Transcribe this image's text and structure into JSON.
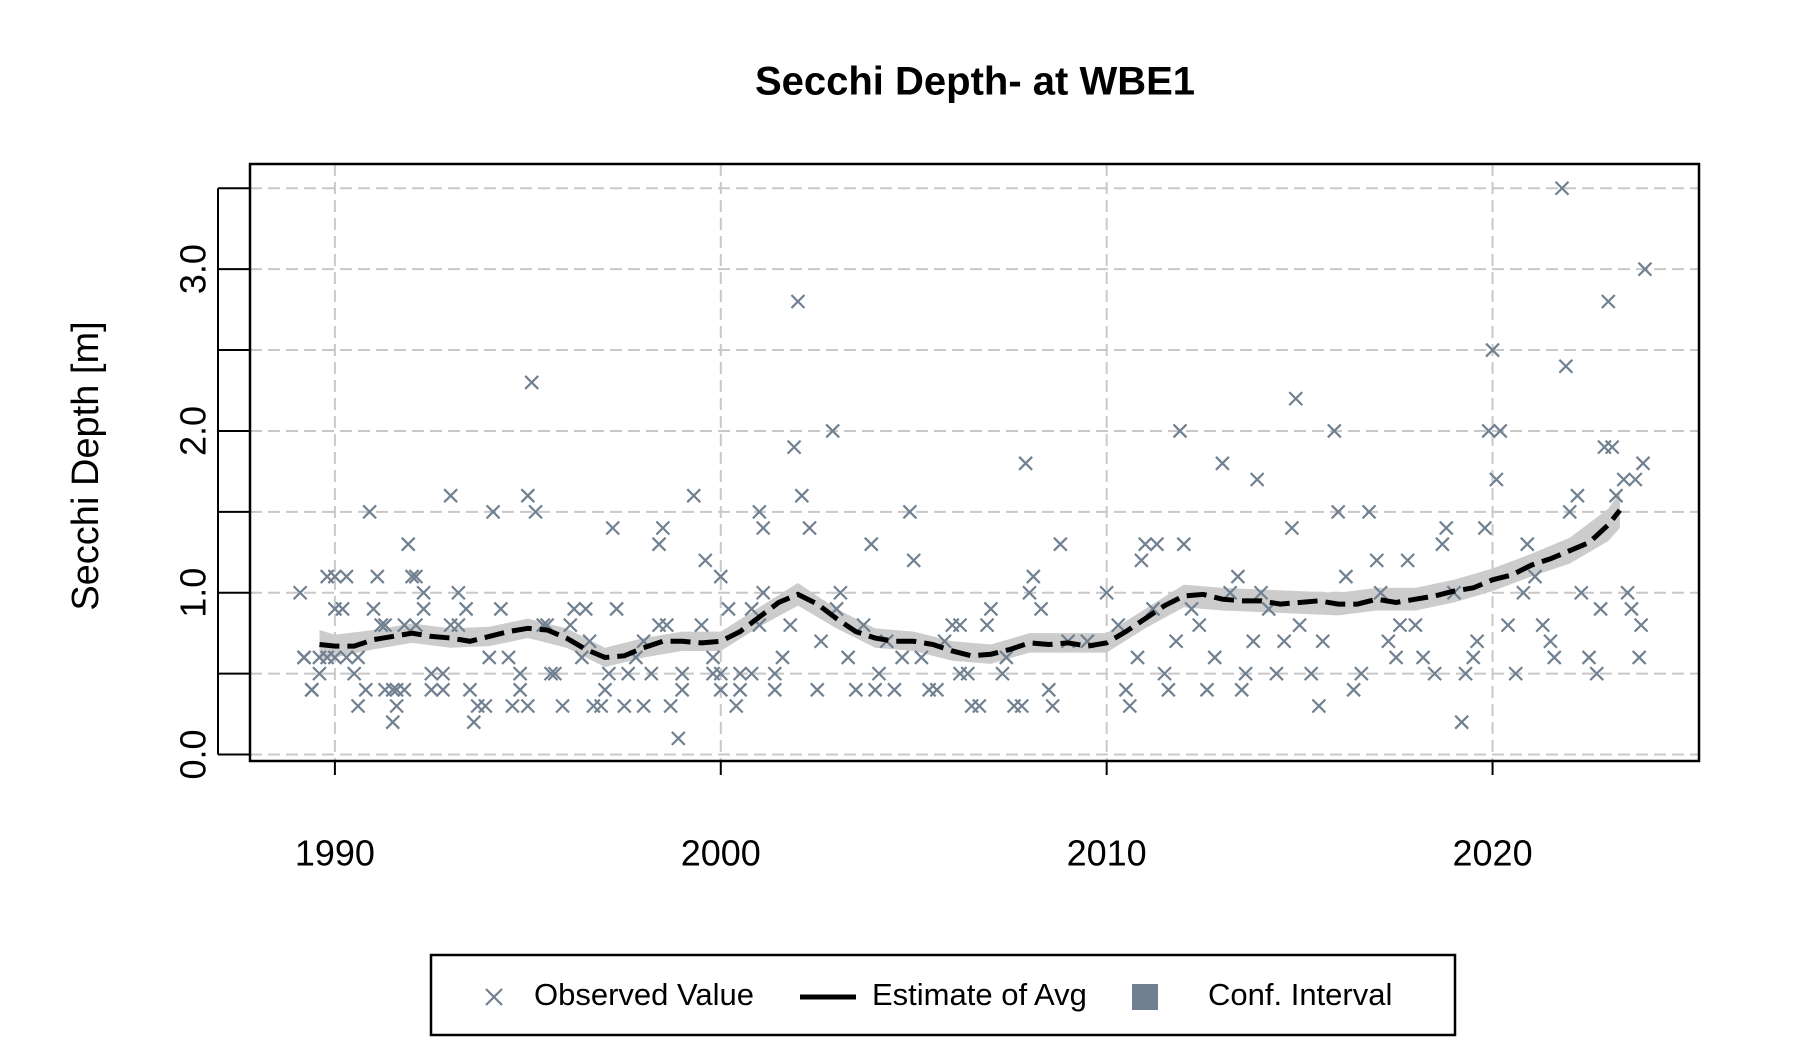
{
  "chart_data": {
    "type": "scatter",
    "title": "Secchi Depth- at WBE1",
    "y_label": "Secchi Depth [m]",
    "xlim": [
      1987.8,
      2025.35
    ],
    "xticks": [
      1990,
      2000,
      2010,
      2020
    ],
    "ylim": [
      -0.04,
      3.65
    ],
    "yticks": [
      {
        "value": 0,
        "label": "0.0"
      },
      {
        "value": 1,
        "label": "1.0"
      },
      {
        "value": 2,
        "label": "2.0"
      },
      {
        "value": 3,
        "label": "3.0"
      }
    ],
    "yminor_ticks": [
      0.5,
      1.5,
      2.5,
      3.5
    ],
    "grid": true,
    "legend": "bottom",
    "series": [
      {
        "name": "Observed Value",
        "type": "scatter",
        "color": "#708090",
        "x": [
          1989.1,
          1989.2,
          1989.2,
          1989.4,
          1989.4,
          1989.6,
          1989.6,
          1989.8,
          1989.8,
          1990.0,
          1990.0,
          1990.0,
          1990.2,
          1990.3,
          1990.3,
          1990.5,
          1990.6,
          1990.6,
          1990.8,
          1990.9,
          1991.0,
          1991.1,
          1991.2,
          1991.3,
          1991.3,
          1991.5,
          1991.5,
          1991.6,
          1991.6,
          1991.8,
          1991.8,
          1991.9,
          1992.0,
          1992.1,
          1992.1,
          1992.3,
          1992.3,
          1992.5,
          1992.5,
          1992.8,
          1992.8,
          1993.0,
          1993.0,
          1993.2,
          1993.2,
          1993.4,
          1993.5,
          1993.6,
          1993.7,
          1993.9,
          1994.0,
          1994.1,
          1994.3,
          1994.5,
          1994.6,
          1994.8,
          1994.8,
          1995.0,
          1995.0,
          1995.1,
          1995.2,
          1995.4,
          1995.5,
          1995.6,
          1995.7,
          1995.9,
          1996.1,
          1996.2,
          1996.4,
          1996.5,
          1996.6,
          1996.7,
          1996.9,
          1997.0,
          1997.1,
          1997.2,
          1997.3,
          1997.5,
          1997.6,
          1997.8,
          1998.0,
          1998.0,
          1998.2,
          1998.4,
          1998.4,
          1998.5,
          1998.6,
          1998.7,
          1998.9,
          1999.0,
          1999.0,
          1999.3,
          1999.5,
          1999.6,
          1999.8,
          1999.8,
          2000.0,
          2000.0,
          2000.0,
          2000.2,
          2000.4,
          2000.5,
          2000.5,
          2000.8,
          2000.8,
          2001.0,
          2001.0,
          2001.1,
          2001.1,
          2001.4,
          2001.4,
          2001.6,
          2001.8,
          2001.9,
          2002.0,
          2002.1,
          2002.3,
          2002.5,
          2002.6,
          2002.9,
          2003.0,
          2003.1,
          2003.3,
          2003.5,
          2003.7,
          2003.9,
          2004.0,
          2004.1,
          2004.3,
          2004.5,
          2004.7,
          2004.9,
          2005.0,
          2005.2,
          2005.4,
          2005.6,
          2005.8,
          2006.0,
          2006.2,
          2006.2,
          2006.4,
          2006.5,
          2006.7,
          2006.9,
          2007.0,
          2007.3,
          2007.4,
          2007.6,
          2007.8,
          2007.9,
          2008.0,
          2008.1,
          2008.3,
          2008.5,
          2008.6,
          2008.8,
          2009.0,
          2009.5,
          2010.0,
          2010.3,
          2010.5,
          2010.6,
          2010.8,
          2010.9,
          2011.0,
          2011.2,
          2011.3,
          2011.5,
          2011.6,
          2011.8,
          2011.9,
          2012.0,
          2012.2,
          2012.4,
          2012.6,
          2012.8,
          2013.0,
          2013.2,
          2013.4,
          2013.5,
          2013.6,
          2013.8,
          2013.9,
          2014.0,
          2014.2,
          2014.4,
          2014.6,
          2014.8,
          2014.9,
          2015.0,
          2015.3,
          2015.5,
          2015.6,
          2015.9,
          2016.0,
          2016.2,
          2016.4,
          2016.6,
          2016.8,
          2017.0,
          2017.1,
          2017.3,
          2017.5,
          2017.6,
          2017.8,
          2018.0,
          2018.2,
          2018.5,
          2018.7,
          2018.8,
          2019.0,
          2019.2,
          2019.3,
          2019.5,
          2019.6,
          2019.8,
          2019.9,
          2020.0,
          2020.1,
          2020.2,
          2020.4,
          2020.6,
          2020.8,
          2020.9,
          2021.1,
          2021.3,
          2021.5,
          2021.6,
          2021.8,
          2021.9,
          2022.0,
          2022.2,
          2022.3,
          2022.5,
          2022.7,
          2022.8,
          2022.9,
          2023.0,
          2023.1,
          2023.2,
          2023.4,
          2023.5,
          2023.6,
          2023.7,
          2023.8,
          2023.85,
          2023.9,
          2023.95
        ],
        "values": [
          1.0,
          0.6,
          0.6,
          0.4,
          0.4,
          0.6,
          0.5,
          1.1,
          0.6,
          0.9,
          1.1,
          0.6,
          0.9,
          1.1,
          0.6,
          0.5,
          0.3,
          0.6,
          0.4,
          1.5,
          0.9,
          1.1,
          0.8,
          0.4,
          0.8,
          0.2,
          0.4,
          0.3,
          0.4,
          0.4,
          0.8,
          1.3,
          1.1,
          0.8,
          1.1,
          1.0,
          0.9,
          0.4,
          0.5,
          0.4,
          0.5,
          1.6,
          0.8,
          1.0,
          0.8,
          0.9,
          0.4,
          0.2,
          0.3,
          0.3,
          0.6,
          1.5,
          0.9,
          0.6,
          0.3,
          0.4,
          0.5,
          0.3,
          1.6,
          2.3,
          1.5,
          0.8,
          0.8,
          0.5,
          0.5,
          0.3,
          0.8,
          0.9,
          0.6,
          0.9,
          0.7,
          0.3,
          0.3,
          0.4,
          0.5,
          1.4,
          0.9,
          0.3,
          0.5,
          0.6,
          0.7,
          0.3,
          0.5,
          1.3,
          0.8,
          1.4,
          0.8,
          0.3,
          0.1,
          0.5,
          0.4,
          1.6,
          0.8,
          1.2,
          0.5,
          0.6,
          0.4,
          0.5,
          1.1,
          0.9,
          0.3,
          0.4,
          0.5,
          0.5,
          0.9,
          1.5,
          0.8,
          1.4,
          1.0,
          0.5,
          0.4,
          0.6,
          0.8,
          1.9,
          2.8,
          1.6,
          1.4,
          0.4,
          0.7,
          2.0,
          0.9,
          1.0,
          0.6,
          0.4,
          0.8,
          1.3,
          0.4,
          0.5,
          0.7,
          0.4,
          0.6,
          1.5,
          1.2,
          0.6,
          0.4,
          0.4,
          0.7,
          0.8,
          0.8,
          0.5,
          0.5,
          0.3,
          0.3,
          0.8,
          0.9,
          0.5,
          0.6,
          0.3,
          0.3,
          1.8,
          1.0,
          1.1,
          0.9,
          0.4,
          0.3,
          1.3,
          0.7,
          0.7,
          1.0,
          0.8,
          0.4,
          0.3,
          0.6,
          1.2,
          1.3,
          0.9,
          1.3,
          0.5,
          0.4,
          0.7,
          2.0,
          1.3,
          0.9,
          0.8,
          0.4,
          0.6,
          1.8,
          1.0,
          1.1,
          0.4,
          0.5,
          0.7,
          1.7,
          1.0,
          0.9,
          0.5,
          0.7,
          1.4,
          2.2,
          0.8,
          0.5,
          0.3,
          0.7,
          2.0,
          1.5,
          1.1,
          0.4,
          0.5,
          1.5,
          1.2,
          1.0,
          0.7,
          0.6,
          0.8,
          1.2,
          0.8,
          0.6,
          0.5,
          1.3,
          1.4,
          1.0,
          0.2,
          0.5,
          0.6,
          0.7,
          1.4,
          2.0,
          2.5,
          1.7,
          2.0,
          0.8,
          0.5,
          1.0,
          1.3,
          1.1,
          0.8,
          0.7,
          0.6,
          3.5,
          2.4,
          1.5,
          1.6,
          1.0,
          0.6,
          0.5,
          0.9,
          1.9,
          2.8,
          1.9,
          1.6,
          1.7,
          1.0,
          0.9,
          1.7,
          0.6,
          0.8,
          1.8,
          3.0
        ]
      },
      {
        "name": "Estimate of Avg",
        "type": "line",
        "color": "#000000",
        "x": [
          1989.6,
          1990,
          1990.5,
          1991,
          1991.5,
          1992,
          1992.5,
          1993,
          1993.5,
          1994,
          1994.5,
          1995,
          1995.5,
          1996,
          1996.5,
          1997,
          1997.5,
          1998,
          1998.5,
          1999,
          1999.5,
          2000,
          2000.5,
          2001,
          2001.5,
          2002,
          2002.5,
          2003,
          2003.5,
          2004,
          2004.5,
          2005,
          2005.5,
          2006,
          2006.5,
          2007,
          2007.5,
          2008,
          2008.5,
          2009,
          2009.5,
          2010,
          2010.5,
          2011,
          2011.5,
          2012,
          2012.5,
          2013,
          2013.5,
          2014,
          2014.5,
          2015,
          2015.5,
          2016,
          2016.5,
          2017,
          2017.5,
          2018,
          2018.5,
          2019,
          2019.5,
          2020,
          2020.5,
          2021,
          2021.5,
          2022,
          2022.5,
          2023,
          2023.3
        ],
        "values": [
          0.68,
          0.67,
          0.67,
          0.71,
          0.73,
          0.75,
          0.73,
          0.72,
          0.7,
          0.73,
          0.76,
          0.78,
          0.77,
          0.72,
          0.65,
          0.6,
          0.61,
          0.66,
          0.7,
          0.7,
          0.69,
          0.7,
          0.76,
          0.85,
          0.94,
          0.99,
          0.93,
          0.84,
          0.76,
          0.72,
          0.7,
          0.7,
          0.68,
          0.64,
          0.61,
          0.62,
          0.65,
          0.69,
          0.68,
          0.69,
          0.67,
          0.69,
          0.76,
          0.84,
          0.92,
          0.98,
          0.99,
          0.96,
          0.95,
          0.95,
          0.93,
          0.94,
          0.95,
          0.93,
          0.93,
          0.96,
          0.94,
          0.96,
          0.98,
          1.01,
          1.03,
          1.08,
          1.11,
          1.17,
          1.21,
          1.26,
          1.31,
          1.42,
          1.51
        ]
      },
      {
        "name": "Conf. Interval",
        "type": "band",
        "color": "#708090",
        "fill": "#cccccc",
        "x": [
          1989.6,
          1990,
          1991,
          1992,
          1993,
          1994,
          1995,
          1996,
          1997,
          1998,
          1999,
          2000,
          2001,
          2002,
          2003,
          2004,
          2005,
          2006,
          2007,
          2008,
          2009,
          2010,
          2011,
          2012,
          2013,
          2014,
          2015,
          2016,
          2017,
          2018,
          2019,
          2020,
          2021,
          2022,
          2023,
          2023.3
        ],
        "lower": [
          0.59,
          0.6,
          0.65,
          0.69,
          0.66,
          0.67,
          0.72,
          0.66,
          0.54,
          0.6,
          0.64,
          0.64,
          0.79,
          0.92,
          0.78,
          0.66,
          0.64,
          0.58,
          0.56,
          0.63,
          0.63,
          0.63,
          0.78,
          0.91,
          0.89,
          0.88,
          0.87,
          0.86,
          0.89,
          0.89,
          0.94,
          1.01,
          1.1,
          1.18,
          1.32,
          1.4
        ],
        "upper": [
          0.77,
          0.74,
          0.77,
          0.81,
          0.78,
          0.79,
          0.84,
          0.78,
          0.66,
          0.72,
          0.76,
          0.76,
          0.91,
          1.06,
          0.9,
          0.78,
          0.76,
          0.7,
          0.68,
          0.75,
          0.75,
          0.75,
          0.9,
          1.05,
          1.03,
          1.02,
          1.01,
          1.0,
          1.03,
          1.03,
          1.08,
          1.15,
          1.24,
          1.34,
          1.52,
          1.62
        ]
      }
    ]
  }
}
